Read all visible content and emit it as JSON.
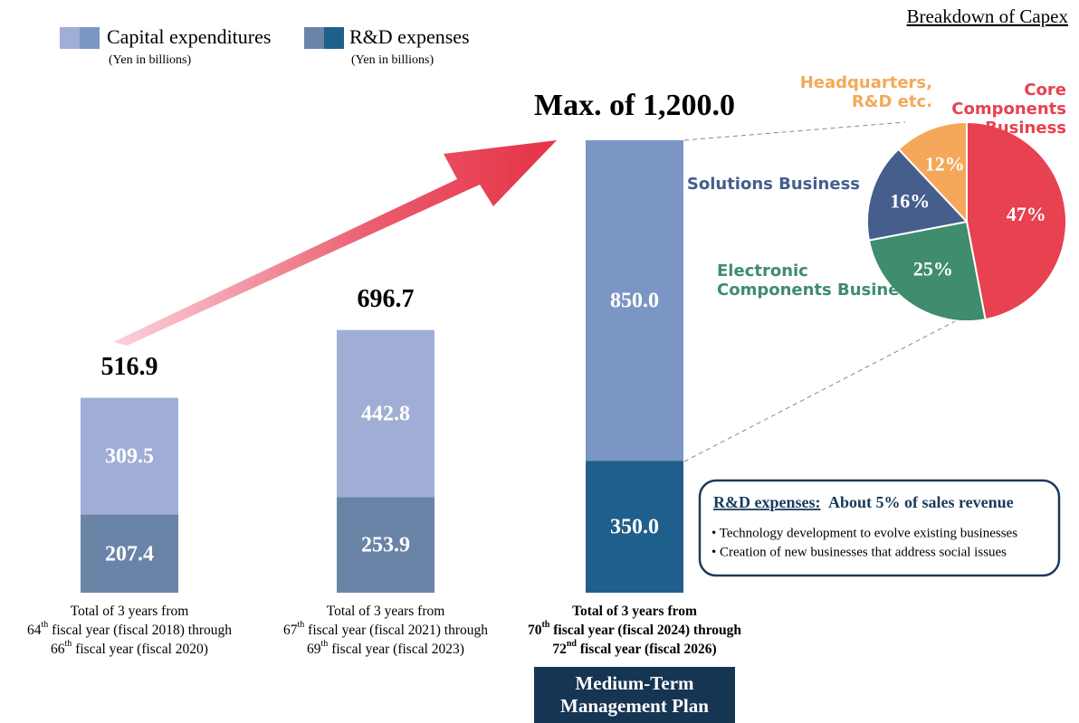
{
  "chart_data": [
    {
      "type": "bar",
      "categories": [
        [
          [
            "Total of 3 years from"
          ],
          [
            "64",
            "th",
            " fiscal year (fiscal 2018) through"
          ],
          [
            "66",
            "th",
            " fiscal year (fiscal 2020)"
          ]
        ],
        [
          [
            "Total of 3 years from"
          ],
          [
            "67",
            "th",
            " fiscal year (fiscal 2021) through"
          ],
          [
            "69",
            "th",
            " fiscal year (fiscal 2023)"
          ]
        ],
        [
          [
            "Total of 3 years from"
          ],
          [
            "70",
            "th",
            " fiscal year (fiscal 2024) through"
          ],
          [
            "72",
            "nd",
            " fiscal year (fiscal 2026)"
          ]
        ]
      ],
      "series": [
        {
          "name": "R&D expenses",
          "subtitle": "(Yen in billions)",
          "colors": [
            "#6a84a8",
            "#6a84a8",
            "#1f5f8b"
          ],
          "values": [
            207.4,
            253.9,
            350.0
          ],
          "value_labels": [
            "207.4",
            "253.9",
            "350.0"
          ]
        },
        {
          "name": "Capital expenditures",
          "subtitle": "(Yen in billions)",
          "colors": [
            "#a0aed6",
            "#a0aed6",
            "#7b96c4"
          ],
          "values": [
            309.5,
            442.8,
            850.0
          ],
          "value_labels": [
            "309.5",
            "442.8",
            "850.0"
          ]
        }
      ],
      "totals": [
        516.9,
        696.7,
        1200.0
      ],
      "total_labels": [
        "516.9",
        "696.7",
        "Max. of 1,200.0"
      ]
    },
    {
      "type": "pie",
      "title": "Breakdown of Capex",
      "categories": [
        [
          "Core",
          "Components",
          "Business"
        ],
        [
          "Electronic",
          "Components Business"
        ],
        [
          "Solutions Business"
        ],
        [
          "Headquarters,",
          "R&D etc."
        ]
      ],
      "colors": [
        "#e8414f",
        "#3f8c6e",
        "#455e8c",
        "#f5a85a"
      ],
      "values": [
        47,
        25,
        16,
        12
      ],
      "value_labels": [
        "47%",
        "25%",
        "16%",
        "12%"
      ]
    }
  ],
  "rd_box": {
    "title": "R&D expenses:",
    "highlight": "About 5% of sales revenue",
    "bullets": [
      "• Technology development to evolve existing businesses",
      "• Creation of new businesses that address social issues"
    ]
  },
  "plan_label": [
    "Medium-Term",
    "Management Plan"
  ]
}
